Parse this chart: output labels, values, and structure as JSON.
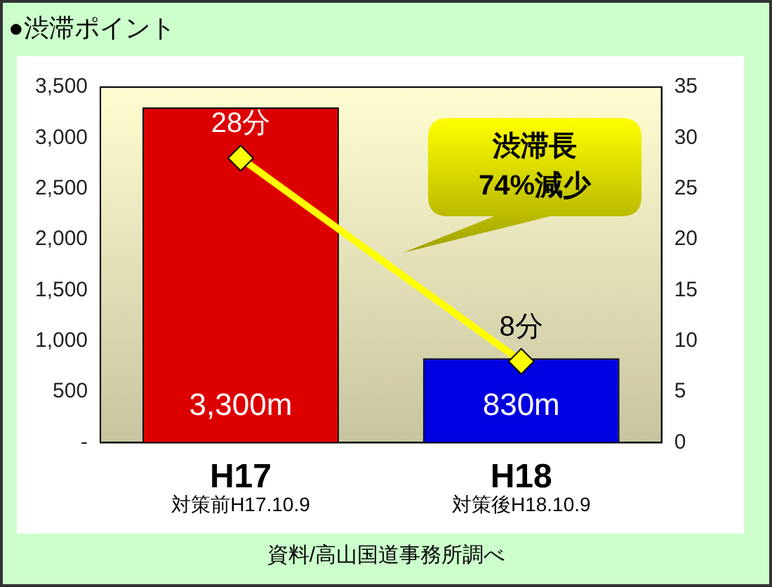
{
  "chart_data": {
    "type": "bar",
    "title": "●渋滞ポイント",
    "categories": [
      "H17",
      "H18"
    ],
    "series": [
      {
        "colors": [
          "#dd0000",
          "#0000e0"
        ],
        "values": [
          3300,
          830
        ],
        "value_labels": [
          "3,300m",
          "830m"
        ]
      },
      {
        "type": "line",
        "axis": "y2",
        "color": "#ffff00",
        "values": [
          28,
          8
        ],
        "value_labels": [
          "28分",
          "8分"
        ]
      }
    ],
    "ylim": [
      0,
      3500
    ],
    "yticks": [
      {
        "value": 0,
        "label": "-"
      },
      500,
      {
        "value": 1000,
        "label": "1,000"
      },
      {
        "value": 1500,
        "label": "1,500"
      },
      {
        "value": 2000,
        "label": "2,000"
      },
      {
        "value": 2500,
        "label": "2,500"
      },
      {
        "value": 3000,
        "label": "3,000"
      },
      {
        "value": 3500,
        "label": "3,500"
      }
    ],
    "y2lim": [
      0,
      35
    ],
    "y2ticks": [
      0,
      5,
      10,
      15,
      20,
      25,
      30,
      35
    ],
    "marker": "diamond",
    "grid": false,
    "legend": false,
    "annotations": [
      "対策前H17.10.9",
      "対策後H18.10.9",
      "渋滞長\n74%減少",
      "資料/高山国道事務所調べ"
    ]
  }
}
